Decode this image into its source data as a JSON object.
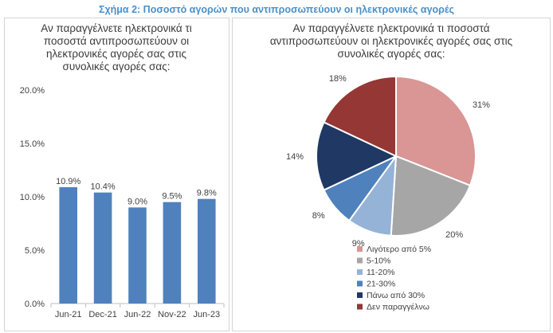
{
  "figure_title": "Σχήμα 2: Ποσοστό αγορών που αντιπροσωπεύουν οι ηλεκτρονικές αγορές",
  "colors": {
    "title": "#4a90c8",
    "bar": "#4f81bd",
    "pie": [
      "#d99694",
      "#a6a6a6",
      "#95b3d7",
      "#4f81bd",
      "#1f3864",
      "#953735"
    ]
  },
  "chart_data": [
    {
      "type": "bar",
      "title_lines": [
        "Αν παραγγέλνετε ηλεκτρονικά τι",
        "ποσοστά αντιπροσωπεύουν οι",
        "ηλεκτρονικές αγορές σας στις",
        "συνολικές αγορές σας:"
      ],
      "categories": [
        "Jun-21",
        "Dec-21",
        "Jun-22",
        "Nov-22",
        "Jun-23"
      ],
      "values": [
        10.9,
        10.4,
        9.0,
        9.5,
        9.8
      ],
      "data_labels": [
        "10.9%",
        "10.4%",
        "9.0%",
        "9.5%",
        "9.8%"
      ],
      "ylim": [
        0,
        20
      ],
      "yticks": [
        0,
        5,
        10,
        15,
        20
      ],
      "ytick_labels": [
        "0.0%",
        "5.0%",
        "10.0%",
        "15.0%",
        "20.0%"
      ],
      "grid": false
    },
    {
      "type": "pie",
      "title_lines": [
        "Αν παραγγέλνετε ηλεκτρονικά τι ποσοστά",
        "αντιπροσωπεύουν οι ηλεκτρονικές αγορές σας στις",
        "συνολικές αγορές σας:"
      ],
      "labels": [
        "Λιγότερο από 5%",
        "5-10%",
        "11-20%",
        "21-30%",
        "Πάνω από 30%",
        "Δεν παραγγέλνω"
      ],
      "values": [
        31,
        20,
        9,
        8,
        14,
        18
      ],
      "data_labels": [
        "31%",
        "20%",
        "9%",
        "8%",
        "14%",
        "18%"
      ],
      "legend_position": "bottom"
    }
  ]
}
